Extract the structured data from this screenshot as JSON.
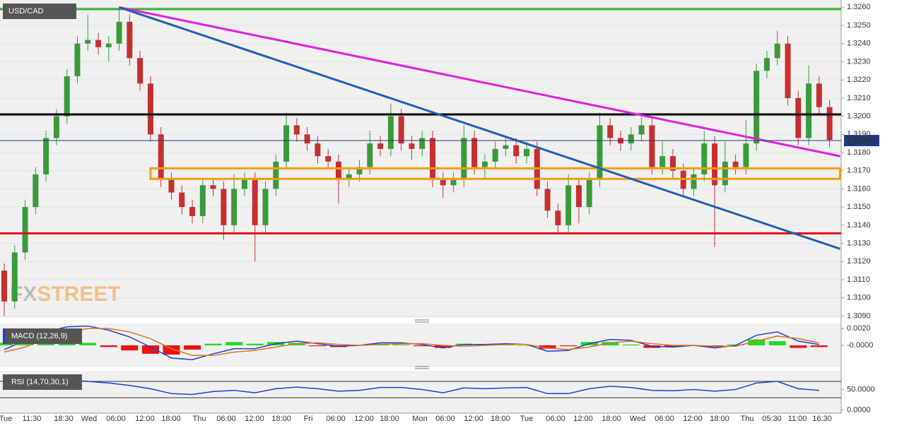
{
  "chart_data": [
    {
      "type": "candlestick",
      "title": "USD/CAD",
      "open": [
        1.3115,
        1.3098,
        1.3125,
        1.315,
        1.3168,
        1.3188,
        1.32,
        1.3222,
        1.324,
        1.3242,
        1.3238,
        1.324,
        1.3252,
        1.3232,
        1.3218,
        1.319,
        1.3165,
        1.3158,
        1.315,
        1.3145,
        1.3162,
        1.316,
        1.314,
        1.316,
        1.3165,
        1.314,
        1.316,
        1.3175,
        1.3195,
        1.319,
        1.3185,
        1.3178,
        1.3175,
        1.3165,
        1.3168,
        1.3172,
        1.3185,
        1.3182,
        1.32,
        1.3185,
        1.3182,
        1.3188,
        1.3165,
        1.3162,
        1.3165,
        1.3188,
        1.3172,
        1.3175,
        1.3182,
        1.3184,
        1.3178,
        1.3182,
        1.316,
        1.3148,
        1.314,
        1.3162,
        1.315,
        1.3165,
        1.3195,
        1.3188,
        1.3185,
        1.319,
        1.3195,
        1.3172,
        1.3178,
        1.317,
        1.316,
        1.3168,
        1.3185,
        1.3162,
        1.3175,
        1.3172,
        1.3185,
        1.3225,
        1.3232,
        1.324,
        1.321,
        1.3188,
        1.3218,
        1.3205
      ],
      "high": [
        1.3119,
        1.3129,
        1.3154,
        1.3172,
        1.3192,
        1.3204,
        1.3226,
        1.3244,
        1.3256,
        1.3246,
        1.3244,
        1.326,
        1.3256,
        1.3236,
        1.3222,
        1.3194,
        1.3169,
        1.3162,
        1.3154,
        1.3166,
        1.3166,
        1.3164,
        1.3168,
        1.3169,
        1.3169,
        1.3164,
        1.3179,
        1.3202,
        1.3199,
        1.3194,
        1.3189,
        1.3182,
        1.3179,
        1.3172,
        1.3176,
        1.3192,
        1.3189,
        1.3207,
        1.3204,
        1.3189,
        1.3192,
        1.3192,
        1.3169,
        1.3169,
        1.3195,
        1.3192,
        1.3179,
        1.3186,
        1.3188,
        1.3188,
        1.3186,
        1.3186,
        1.3164,
        1.3152,
        1.3168,
        1.3166,
        1.3169,
        1.3202,
        1.3199,
        1.3192,
        1.3194,
        1.3199,
        1.3199,
        1.3186,
        1.3182,
        1.3174,
        1.3172,
        1.3192,
        1.3189,
        1.3186,
        1.3179,
        1.3198,
        1.3229,
        1.3236,
        1.3247,
        1.3244,
        1.3214,
        1.3228,
        1.3222,
        1.3209
      ],
      "low": [
        1.309,
        1.3094,
        1.3121,
        1.3146,
        1.3164,
        1.3184,
        1.3196,
        1.3218,
        1.3236,
        1.3234,
        1.323,
        1.3236,
        1.3228,
        1.3214,
        1.3186,
        1.3161,
        1.3154,
        1.3146,
        1.3141,
        1.3141,
        1.3156,
        1.3132,
        1.3136,
        1.3156,
        1.312,
        1.3136,
        1.3156,
        1.3171,
        1.3186,
        1.3181,
        1.3174,
        1.3171,
        1.3152,
        1.3161,
        1.3164,
        1.3168,
        1.3178,
        1.3178,
        1.3181,
        1.3176,
        1.3178,
        1.3161,
        1.3155,
        1.3158,
        1.3161,
        1.3168,
        1.3165,
        1.3171,
        1.3178,
        1.3174,
        1.3174,
        1.3156,
        1.3144,
        1.3135,
        1.3136,
        1.3141,
        1.3146,
        1.3161,
        1.3184,
        1.3181,
        1.3181,
        1.3186,
        1.3168,
        1.3168,
        1.3166,
        1.3156,
        1.3156,
        1.3164,
        1.3128,
        1.3158,
        1.3168,
        1.3168,
        1.3181,
        1.3221,
        1.3228,
        1.3206,
        1.3184,
        1.3184,
        1.3201,
        1.3183
      ],
      "close": [
        1.3098,
        1.3125,
        1.315,
        1.3168,
        1.3188,
        1.32,
        1.3222,
        1.324,
        1.3242,
        1.3238,
        1.324,
        1.3252,
        1.3232,
        1.3218,
        1.319,
        1.3165,
        1.3158,
        1.315,
        1.3145,
        1.3162,
        1.316,
        1.314,
        1.316,
        1.3165,
        1.314,
        1.316,
        1.3175,
        1.3195,
        1.319,
        1.3185,
        1.3178,
        1.3175,
        1.3165,
        1.3168,
        1.3172,
        1.3185,
        1.3182,
        1.32,
        1.3185,
        1.3182,
        1.3188,
        1.3165,
        1.3162,
        1.3165,
        1.3188,
        1.3172,
        1.3175,
        1.3182,
        1.3184,
        1.3178,
        1.3182,
        1.316,
        1.3148,
        1.314,
        1.3162,
        1.315,
        1.3165,
        1.3195,
        1.3188,
        1.3185,
        1.319,
        1.3195,
        1.3172,
        1.3178,
        1.317,
        1.316,
        1.3168,
        1.3185,
        1.3162,
        1.3175,
        1.3172,
        1.3185,
        1.3225,
        1.3232,
        1.324,
        1.321,
        1.3188,
        1.3218,
        1.3205,
        1.3187
      ],
      "up_color": "#3a9a3a",
      "down_color": "#c62f2f",
      "ylim": [
        1.3089,
        1.3264
      ],
      "yticks": [
        {
          "value": 1.309,
          "label": "1.3090"
        },
        {
          "value": 1.31,
          "label": "1.3100"
        },
        {
          "value": 1.311,
          "label": "1.3110"
        },
        {
          "value": 1.312,
          "label": "1.3120"
        },
        {
          "value": 1.313,
          "label": "1.3130"
        },
        {
          "value": 1.314,
          "label": "1.3140"
        },
        {
          "value": 1.315,
          "label": "1.3150"
        },
        {
          "value": 1.316,
          "label": "1.3160"
        },
        {
          "value": 1.317,
          "label": "1.3170"
        },
        {
          "value": 1.318,
          "label": "1.3180"
        },
        {
          "value": 1.319,
          "label": "1.3190"
        },
        {
          "value": 1.32,
          "label": "1.3200"
        },
        {
          "value": 1.321,
          "label": "1.3210"
        },
        {
          "value": 1.322,
          "label": "1.3220"
        },
        {
          "value": 1.323,
          "label": "1.3230"
        },
        {
          "value": 1.324,
          "label": "1.3240"
        },
        {
          "value": 1.325,
          "label": "1.3250"
        },
        {
          "value": 1.326,
          "label": "1.3260"
        }
      ],
      "levels": [
        {
          "value": 1.3259,
          "color": "#2db52d"
        },
        {
          "value": 1.3201,
          "color": "#000000"
        },
        {
          "value": 1.31355,
          "color": "#e01010"
        }
      ],
      "current_price": 1.31866,
      "current_color": "#1f3a7a",
      "zone": {
        "from": 1.31655,
        "to": 1.31713,
        "start": 14,
        "end": 80,
        "color": "#f39c12"
      },
      "trendlines": [
        {
          "color": "#e020e0",
          "start": [
            11,
            1.326
          ],
          "end": [
            80,
            1.3178
          ]
        },
        {
          "color": "#1f5fae",
          "start": [
            11,
            1.326
          ],
          "end": [
            80,
            1.3127
          ]
        }
      ],
      "watermark": [
        "FX",
        "STREET"
      ]
    },
    {
      "type": "macd",
      "title": "MACD (12,26,9)",
      "series": [
        {
          "color": "#2040d0",
          "values": [
            -0.0005,
            0.0006,
            0.0016,
            0.0022,
            0.0023,
            0.0018,
            0.001,
            -0.0002,
            -0.0015,
            -0.0017,
            -0.001,
            -0.0004,
            -0.0004,
            0.0002,
            0.0005,
            0.0002,
            -0.0001,
            0.0,
            0.0003,
            0.0003,
            0.0001,
            -0.0003,
            0.0001,
            0.0001,
            0.0002,
            0.0001,
            -0.0007,
            -0.0006,
            0.0002,
            0.0007,
            0.0006,
            -0.0001,
            -0.0002,
            0.0,
            -0.0003,
            0.0,
            0.0012,
            0.0016,
            0.0005,
            0.0001
          ]
        },
        {
          "color": "#e07020",
          "values": [
            -0.0008,
            -0.0002,
            0.0008,
            0.0015,
            0.002,
            0.002,
            0.0016,
            0.0008,
            -0.0004,
            -0.0012,
            -0.0012,
            -0.0008,
            -0.0006,
            -0.0002,
            0.0002,
            0.0003,
            0.0001,
            0.0,
            0.0001,
            0.0002,
            0.0002,
            0.0,
            -0.0001,
            0.0,
            0.0001,
            0.0001,
            -0.0003,
            -0.0005,
            -0.0002,
            0.0003,
            0.0005,
            0.0002,
            0.0,
            0.0,
            -0.0001,
            -0.0001,
            0.0005,
            0.0011,
            0.0008,
            0.0003
          ]
        }
      ],
      "histogram": [
        0.0003,
        0.0008,
        0.0008,
        0.0007,
        0.0003,
        -0.0002,
        -0.0006,
        -0.001,
        -0.0011,
        -0.0005,
        0.0002,
        0.0004,
        0.0002,
        0.0004,
        0.0003,
        -0.0001,
        -0.0002,
        0.0,
        0.0002,
        0.0001,
        -0.0001,
        -0.0003,
        0.0002,
        0.0001,
        0.0001,
        0.0,
        -0.0004,
        -0.0001,
        0.0004,
        0.0004,
        0.0001,
        -0.0003,
        -0.0002,
        0.0,
        -0.0002,
        0.0001,
        0.0007,
        0.0005,
        -0.0003,
        -0.0002
      ],
      "up_color": "#22dd22",
      "down_color": "#ee1111",
      "ylim": [
        -0.0026,
        0.0026
      ],
      "yticks": [
        {
          "value": 0.002,
          "label": "0.0020"
        },
        {
          "value": 0,
          "label": "-0.0000"
        }
      ]
    },
    {
      "type": "line",
      "title": "RSI (14,70,30,1)",
      "series": [
        {
          "color": "#1a3fd0",
          "values": [
            68,
            75,
            78,
            74,
            70,
            66,
            60,
            52,
            40,
            38,
            45,
            48,
            42,
            52,
            56,
            52,
            46,
            48,
            55,
            55,
            50,
            42,
            54,
            52,
            54,
            55,
            40,
            40,
            52,
            58,
            55,
            48,
            47,
            50,
            46,
            50,
            66,
            70,
            52,
            48
          ]
        }
      ],
      "levels": [
        70,
        30
      ],
      "ylim": [
        -8,
        96
      ],
      "yticks": [
        {
          "value": 50,
          "label": "50.0000"
        },
        {
          "value": 0,
          "label": "0.0000"
        }
      ],
      "x_labels": [
        "Tue",
        "11:30",
        "18:30",
        "Wed",
        "06:00",
        "12:00",
        "18:00",
        "Thu",
        "06:00",
        "12:00",
        "18:00",
        "Fri",
        "06:00",
        "12:00",
        "18:00",
        "Mon",
        "06:00",
        "12:00",
        "18:00",
        "Tue",
        "06:00",
        "12:00",
        "18:00",
        "Wed",
        "06:00",
        "12:00",
        "18:00",
        "Thu",
        "05:30",
        "11:00",
        "16:30"
      ]
    }
  ]
}
